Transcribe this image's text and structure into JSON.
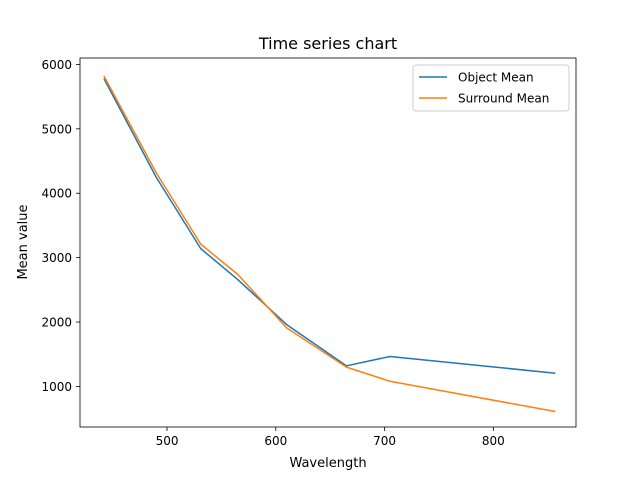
{
  "chart_data": {
    "type": "line",
    "title": "Time series chart",
    "xlabel": "Wavelength",
    "ylabel": "Mean value",
    "xlim": [
      420,
      876
    ],
    "ylim": [
      370,
      6100
    ],
    "xticks": [
      500,
      600,
      700,
      800
    ],
    "yticks": [
      1000,
      2000,
      3000,
      4000,
      5000,
      6000
    ],
    "grid": false,
    "legend_position": "upper right",
    "series": [
      {
        "name": "Object Mean",
        "color": "#1f77b4",
        "x": [
          442,
          490,
          531,
          565,
          610,
          665,
          705,
          857
        ],
        "y": [
          5780,
          4250,
          3140,
          2660,
          1960,
          1320,
          1465,
          1205
        ]
      },
      {
        "name": "Surround Mean",
        "color": "#ff7f0e",
        "x": [
          442,
          490,
          531,
          565,
          610,
          665,
          705,
          857
        ],
        "y": [
          5820,
          4320,
          3210,
          2740,
          1910,
          1300,
          1080,
          610
        ]
      }
    ]
  }
}
